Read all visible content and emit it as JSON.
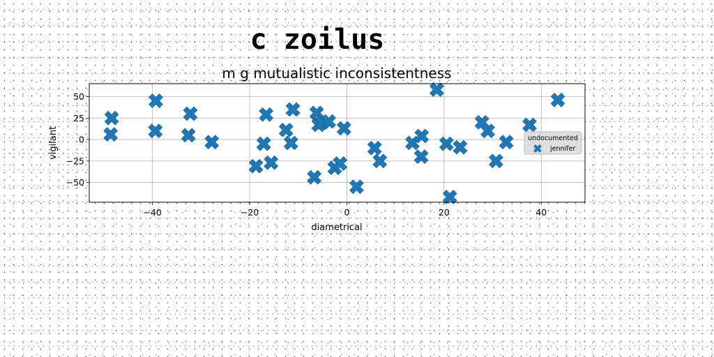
{
  "figure_title": "c zoilus",
  "chart_data": {
    "type": "scatter",
    "title": "m g mutualistic inconsistentness",
    "xlabel": "diametrical",
    "ylabel": "vigilant",
    "xlim": [
      -53,
      49
    ],
    "ylim": [
      -73,
      65
    ],
    "xticks": [
      -40,
      -20,
      0,
      20,
      40
    ],
    "yticks": [
      50,
      25,
      0,
      -25,
      -50
    ],
    "xtick_labels": [
      "−40",
      "−20",
      "0",
      "20",
      "40"
    ],
    "ytick_labels": [
      "50",
      "25",
      "0",
      "−25",
      "−50"
    ],
    "grid": true,
    "marker": "X",
    "legend": {
      "title": "undocumented",
      "placement": "right"
    },
    "series": [
      {
        "name": "jennifer",
        "color": "#1f77b4",
        "points": [
          [
            -48.4,
            25
          ],
          [
            -48.6,
            6
          ],
          [
            -39.3,
            45
          ],
          [
            -39.4,
            10
          ],
          [
            -32.6,
            5
          ],
          [
            -32.2,
            30
          ],
          [
            -27.8,
            -3
          ],
          [
            -18.7,
            -31
          ],
          [
            -17.1,
            -5
          ],
          [
            -16.6,
            29
          ],
          [
            -15.6,
            -27
          ],
          [
            -12.5,
            11
          ],
          [
            -11.5,
            -4
          ],
          [
            -11.1,
            35
          ],
          [
            -6.7,
            -44
          ],
          [
            -6.2,
            31
          ],
          [
            -5.8,
            17
          ],
          [
            -5.0,
            20
          ],
          [
            -3.7,
            21
          ],
          [
            -2.5,
            -33
          ],
          [
            -1.4,
            -28
          ],
          [
            -0.6,
            13
          ],
          [
            2.0,
            -55
          ],
          [
            5.7,
            -10
          ],
          [
            6.8,
            -25
          ],
          [
            13.5,
            -4
          ],
          [
            15.4,
            4
          ],
          [
            15.3,
            -20
          ],
          [
            18.5,
            58
          ],
          [
            20.5,
            -5
          ],
          [
            21.2,
            -67
          ],
          [
            23.3,
            -9
          ],
          [
            27.8,
            20
          ],
          [
            29.0,
            10
          ],
          [
            30.7,
            -25
          ],
          [
            32.8,
            -3
          ],
          [
            37.6,
            17
          ],
          [
            43.4,
            46
          ]
        ]
      }
    ]
  }
}
